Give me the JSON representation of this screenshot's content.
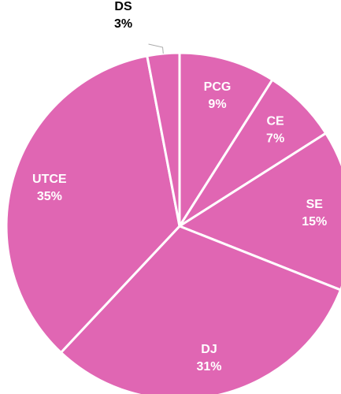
{
  "chart_data": {
    "type": "pie",
    "categories": [
      "PCG",
      "CE",
      "SE",
      "DJ",
      "UTCE",
      "DS"
    ],
    "values": [
      9,
      7,
      15,
      31,
      35,
      3
    ],
    "value_labels": [
      "9%",
      "7%",
      "15%",
      "31%",
      "35%",
      "3%"
    ],
    "color": "#e066b3"
  }
}
